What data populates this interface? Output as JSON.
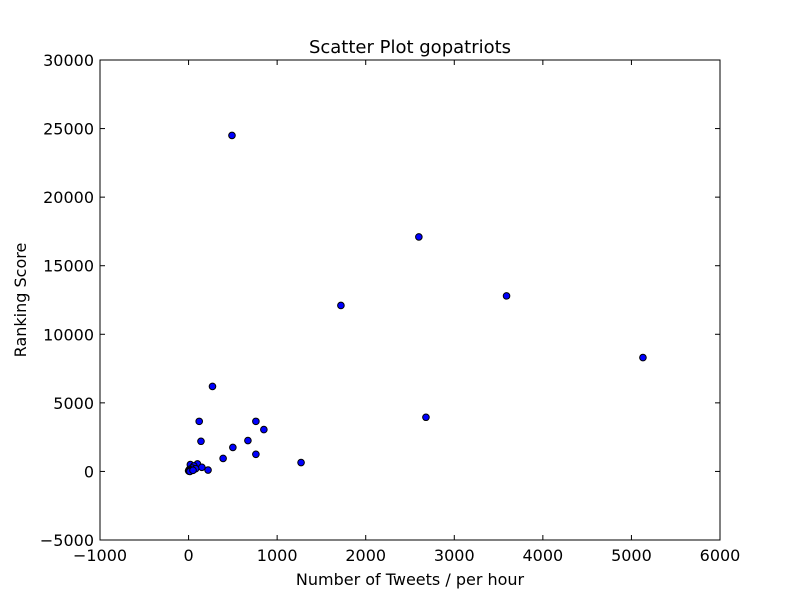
{
  "chart_data": {
    "type": "scatter",
    "title": "Scatter Plot gopatriots",
    "xlabel": "Number of Tweets / per hour",
    "ylabel": "Ranking Score",
    "xlim": [
      -1000,
      6000
    ],
    "ylim": [
      -5000,
      30000
    ],
    "xticks": [
      -1000,
      0,
      1000,
      2000,
      3000,
      4000,
      5000,
      6000
    ],
    "yticks": [
      -5000,
      0,
      5000,
      10000,
      15000,
      20000,
      25000,
      30000
    ],
    "xtick_labels": [
      "−1000",
      "0",
      "1000",
      "2000",
      "3000",
      "4000",
      "5000",
      "6000"
    ],
    "ytick_labels": [
      "−5000",
      "0",
      "5000",
      "10000",
      "15000",
      "20000",
      "25000",
      "30000"
    ],
    "grid": false,
    "marker_color": "#0000ff",
    "marker_edge_color": "#000000",
    "points": [
      {
        "x": 490,
        "y": 24500
      },
      {
        "x": 2600,
        "y": 17100
      },
      {
        "x": 3590,
        "y": 12800
      },
      {
        "x": 1720,
        "y": 12100
      },
      {
        "x": 5130,
        "y": 8300
      },
      {
        "x": 270,
        "y": 6200
      },
      {
        "x": 2680,
        "y": 3950
      },
      {
        "x": 120,
        "y": 3650
      },
      {
        "x": 760,
        "y": 3650
      },
      {
        "x": 850,
        "y": 3050
      },
      {
        "x": 670,
        "y": 2250
      },
      {
        "x": 140,
        "y": 2200
      },
      {
        "x": 500,
        "y": 1750
      },
      {
        "x": 760,
        "y": 1250
      },
      {
        "x": 390,
        "y": 950
      },
      {
        "x": 1270,
        "y": 650
      },
      {
        "x": 100,
        "y": 550
      },
      {
        "x": 20,
        "y": 500
      },
      {
        "x": 60,
        "y": 400
      },
      {
        "x": 150,
        "y": 300
      },
      {
        "x": 220,
        "y": 100
      },
      {
        "x": 40,
        "y": 250
      },
      {
        "x": 80,
        "y": 200
      },
      {
        "x": 10,
        "y": 150
      },
      {
        "x": 30,
        "y": 100
      },
      {
        "x": 0,
        "y": 50
      },
      {
        "x": 5,
        "y": 20
      },
      {
        "x": 15,
        "y": 0
      },
      {
        "x": 50,
        "y": 80
      }
    ]
  }
}
